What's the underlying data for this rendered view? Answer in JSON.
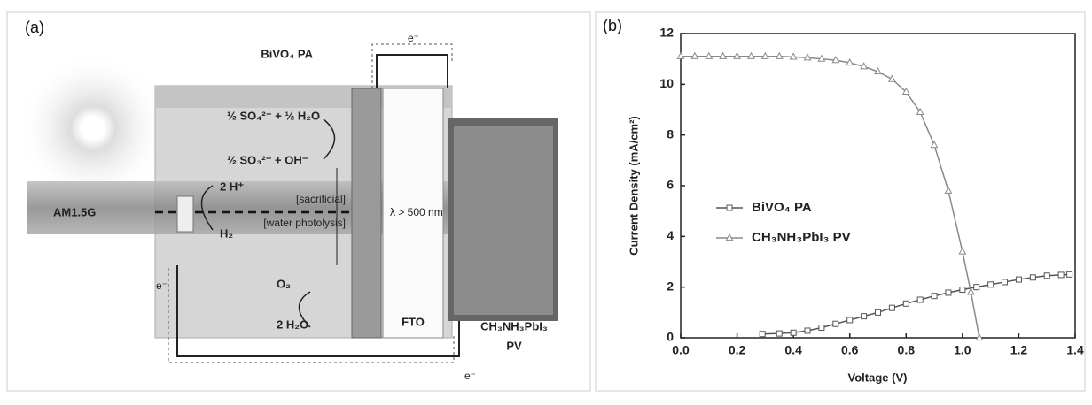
{
  "panel_a": {
    "panel_label": "(a)",
    "labels": {
      "bivo4": "BiVO₄ PA",
      "e_top": "e⁻",
      "so4": "½ SO₄²⁻ + ½ H₂O",
      "so3": "½ SO₃²⁻ + OH⁻",
      "h_plus": "2 H⁺",
      "sacrificial": "[sacrificial]",
      "water": "[water photolysis]",
      "h2": "H₂",
      "am": "AM1.5G",
      "lambda": "λ > 500 nm",
      "e_left": "e⁻",
      "o2": "O₂",
      "h2o": "2 H₂O",
      "fto": "FTO",
      "pv1": "CH₃NH₃PbI₃",
      "pv2": "PV",
      "e_bottom": "e⁻"
    }
  },
  "chart_data": {
    "type": "line",
    "panel_label": "(b)",
    "x_label": "Voltage (V)",
    "y_label": "Current Density (mA/cm²)",
    "xlim": [
      0,
      1.4
    ],
    "ylim": [
      0,
      12
    ],
    "xticks": [
      {
        "value": 0,
        "label": "0.0"
      },
      0.2,
      0.4,
      0.6,
      0.8,
      {
        "value": 1,
        "label": "1.0"
      },
      1.2,
      1.4
    ],
    "yticks": [
      0,
      2,
      4,
      6,
      8,
      10,
      12
    ],
    "legend": "center-left",
    "series": [
      {
        "name": "BiVO₄ PA",
        "color": "#555555",
        "marker": "square",
        "x": [
          0.29,
          0.35,
          0.4,
          0.45,
          0.5,
          0.55,
          0.6,
          0.65,
          0.7,
          0.75,
          0.8,
          0.85,
          0.9,
          0.95,
          1.0,
          1.05,
          1.1,
          1.15,
          1.2,
          1.25,
          1.3,
          1.35,
          1.38
        ],
        "values": [
          0.15,
          0.17,
          0.2,
          0.28,
          0.4,
          0.55,
          0.7,
          0.85,
          1.0,
          1.18,
          1.35,
          1.5,
          1.65,
          1.78,
          1.9,
          2.0,
          2.1,
          2.2,
          2.3,
          2.38,
          2.45,
          2.48,
          2.5
        ]
      },
      {
        "name": "CH₃NH₃PbI₃ PV",
        "color": "#8a8a8a",
        "marker": "triangle",
        "x": [
          0,
          0.05,
          0.1,
          0.15,
          0.2,
          0.25,
          0.3,
          0.35,
          0.4,
          0.45,
          0.5,
          0.55,
          0.6,
          0.65,
          0.7,
          0.75,
          0.8,
          0.85,
          0.9,
          0.95,
          1.0,
          1.03,
          1.06
        ],
        "values": [
          11.1,
          11.1,
          11.1,
          11.1,
          11.1,
          11.1,
          11.1,
          11.1,
          11.08,
          11.05,
          11.0,
          10.95,
          10.85,
          10.7,
          10.5,
          10.2,
          9.7,
          8.9,
          7.6,
          5.8,
          3.4,
          1.8,
          0
        ]
      }
    ]
  }
}
